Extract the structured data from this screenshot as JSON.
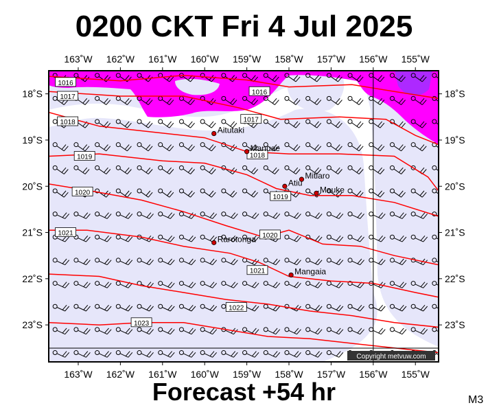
{
  "title": "0200 CKT Fri 4 Jul 2025",
  "subtitle": "Forecast +54 hr",
  "model": "M3",
  "copyright": "Copyright metvuw.com",
  "colors": {
    "rain_heavy": "#ff00ff",
    "rain_light": "#e6e6fa",
    "isobar": "#ff0000",
    "station": "#cc0000"
  },
  "map": {
    "lon_range": [
      -163.7,
      -154.45
    ],
    "lat_range": [
      -23.8,
      -17.5
    ],
    "lon_ticks": [
      {
        "v": -163,
        "label": "163˚W"
      },
      {
        "v": -162,
        "label": "162˚W"
      },
      {
        "v": -161,
        "label": "161˚W"
      },
      {
        "v": -160,
        "label": "160˚W"
      },
      {
        "v": -159,
        "label": "159˚W"
      },
      {
        "v": -158,
        "label": "158˚W"
      },
      {
        "v": -157,
        "label": "157˚W"
      },
      {
        "v": -156,
        "label": "156˚W"
      },
      {
        "v": -155,
        "label": "155˚W"
      }
    ],
    "lat_ticks": [
      {
        "v": -18,
        "label": "18˚S"
      },
      {
        "v": -19,
        "label": "19˚S"
      },
      {
        "v": -20,
        "label": "20˚S"
      },
      {
        "v": -21,
        "label": "21˚S"
      },
      {
        "v": -22,
        "label": "22˚S"
      },
      {
        "v": -23,
        "label": "23˚S"
      }
    ],
    "places": [
      {
        "name": "Aitutaki",
        "lon": -159.78,
        "lat": -18.86
      },
      {
        "name": "Manuae",
        "lon": -159.0,
        "lat": -19.25
      },
      {
        "name": "Mitiaro",
        "lon": -157.7,
        "lat": -19.85
      },
      {
        "name": "Atiu",
        "lon": -158.1,
        "lat": -20.0
      },
      {
        "name": "Mauke",
        "lon": -157.35,
        "lat": -20.15
      },
      {
        "name": "Rarotonga",
        "lon": -159.78,
        "lat": -21.22
      },
      {
        "name": "Mangaia",
        "lon": -157.95,
        "lat": -21.92
      }
    ],
    "isobars": [
      {
        "label": "1016",
        "points": [
          [
            -163.7,
            -17.62
          ],
          [
            -162.0,
            -17.72
          ],
          [
            -160.5,
            -17.6
          ],
          [
            -159.0,
            -17.7
          ],
          [
            -158.0,
            -17.85
          ],
          [
            -156.5,
            -17.8
          ],
          [
            -155.5,
            -17.95
          ],
          [
            -154.45,
            -18.1
          ]
        ],
        "labels": [
          [
            -163.3,
            -17.75
          ],
          [
            -158.7,
            -17.95
          ]
        ]
      },
      {
        "label": "1017",
        "points": [
          [
            -163.7,
            -17.95
          ],
          [
            -162.0,
            -18.05
          ],
          [
            -160.5,
            -18.05
          ],
          [
            -159.2,
            -18.3
          ],
          [
            -158.2,
            -18.55
          ],
          [
            -156.8,
            -18.5
          ],
          [
            -155.7,
            -18.55
          ],
          [
            -155.0,
            -18.9
          ],
          [
            -154.45,
            -19.1
          ]
        ],
        "labels": [
          [
            -163.25,
            -18.05
          ],
          [
            -158.9,
            -18.55
          ]
        ]
      },
      {
        "label": "1018",
        "points": [
          [
            -163.7,
            -18.4
          ],
          [
            -162.5,
            -18.7
          ],
          [
            -161.0,
            -18.85
          ],
          [
            -160.0,
            -18.95
          ],
          [
            -159.0,
            -19.25
          ],
          [
            -158.0,
            -19.3
          ],
          [
            -156.8,
            -19.3
          ],
          [
            -155.5,
            -19.35
          ],
          [
            -154.7,
            -19.8
          ],
          [
            -154.45,
            -20.1
          ]
        ],
        "labels": [
          [
            -163.25,
            -18.6
          ],
          [
            -158.75,
            -19.32
          ]
        ]
      },
      {
        "label": "1019",
        "points": [
          [
            -163.7,
            -19.35
          ],
          [
            -162.5,
            -19.3
          ],
          [
            -161.0,
            -19.45
          ],
          [
            -160.0,
            -19.5
          ],
          [
            -159.0,
            -19.75
          ],
          [
            -158.3,
            -20.05
          ],
          [
            -157.5,
            -20.2
          ],
          [
            -156.5,
            -20.2
          ],
          [
            -155.5,
            -20.35
          ],
          [
            -154.45,
            -20.65
          ]
        ],
        "labels": [
          [
            -162.85,
            -19.35
          ],
          [
            -158.2,
            -20.22
          ]
        ]
      },
      {
        "label": "1020",
        "points": [
          [
            -163.7,
            -19.95
          ],
          [
            -162.7,
            -20.1
          ],
          [
            -161.5,
            -20.3
          ],
          [
            -160.5,
            -20.55
          ],
          [
            -159.5,
            -20.85
          ],
          [
            -158.6,
            -21.1
          ],
          [
            -158.0,
            -20.95
          ],
          [
            -157.2,
            -21.25
          ],
          [
            -156.3,
            -21.3
          ],
          [
            -155.5,
            -21.5
          ],
          [
            -154.45,
            -21.7
          ]
        ],
        "labels": [
          [
            -162.9,
            -20.12
          ],
          [
            -158.45,
            -21.05
          ]
        ]
      },
      {
        "label": "1021",
        "points": [
          [
            -163.7,
            -20.95
          ],
          [
            -162.8,
            -20.95
          ],
          [
            -161.5,
            -21.1
          ],
          [
            -160.5,
            -21.3
          ],
          [
            -159.4,
            -21.45
          ],
          [
            -158.7,
            -21.65
          ],
          [
            -158.0,
            -21.95
          ],
          [
            -157.0,
            -22.05
          ],
          [
            -156.0,
            -22.1
          ],
          [
            -155.0,
            -22.3
          ],
          [
            -154.45,
            -22.4
          ]
        ],
        "labels": [
          [
            -163.3,
            -21.0
          ],
          [
            -158.75,
            -21.82
          ]
        ]
      },
      {
        "label": "1022",
        "points": [
          [
            -163.7,
            -21.9
          ],
          [
            -162.5,
            -21.95
          ],
          [
            -161.5,
            -22.15
          ],
          [
            -160.5,
            -22.3
          ],
          [
            -159.5,
            -22.45
          ],
          [
            -158.5,
            -22.55
          ],
          [
            -157.5,
            -22.7
          ],
          [
            -156.5,
            -22.8
          ],
          [
            -155.5,
            -22.95
          ],
          [
            -154.45,
            -23.05
          ]
        ],
        "labels": [
          [
            -159.25,
            -22.62
          ]
        ]
      },
      {
        "label": "1023",
        "points": [
          [
            -163.7,
            -22.95
          ],
          [
            -162.5,
            -23.0
          ],
          [
            -161.5,
            -22.95
          ],
          [
            -160.5,
            -22.95
          ],
          [
            -159.5,
            -23.1
          ],
          [
            -158.5,
            -23.25
          ],
          [
            -157.5,
            -23.3
          ],
          [
            -156.5,
            -23.4
          ],
          [
            -155.5,
            -23.5
          ],
          [
            -154.45,
            -23.6
          ]
        ],
        "labels": [
          [
            -161.5,
            -22.95
          ]
        ]
      }
    ]
  }
}
